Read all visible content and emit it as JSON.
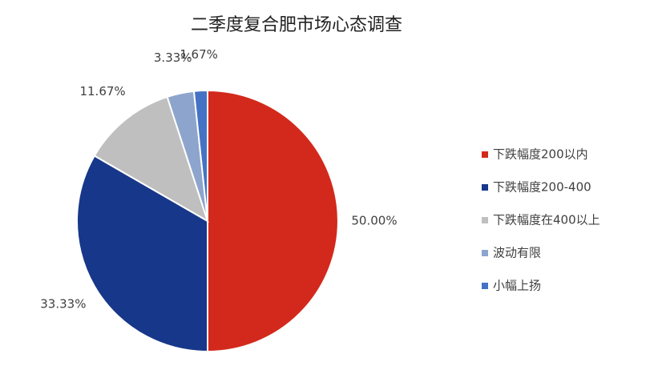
{
  "chart_data": {
    "type": "pie",
    "title": "二季度复合肥市场心态调查",
    "categories": [
      "下跌幅度200以内",
      "下跌幅度200-400",
      "下跌幅度在400以上",
      "波动有限",
      "小幅上扬"
    ],
    "values": [
      50,
      33.33,
      11.67,
      3.33,
      1.67
    ],
    "value_labels": [
      "50.00%",
      "33.33%",
      "11.67%",
      "3.33%",
      "1.67%"
    ],
    "colors": [
      "#d3291c",
      "#17378a",
      "#bfbfbf",
      "#8da5cc",
      "#4472c4"
    ],
    "legend": "right"
  }
}
